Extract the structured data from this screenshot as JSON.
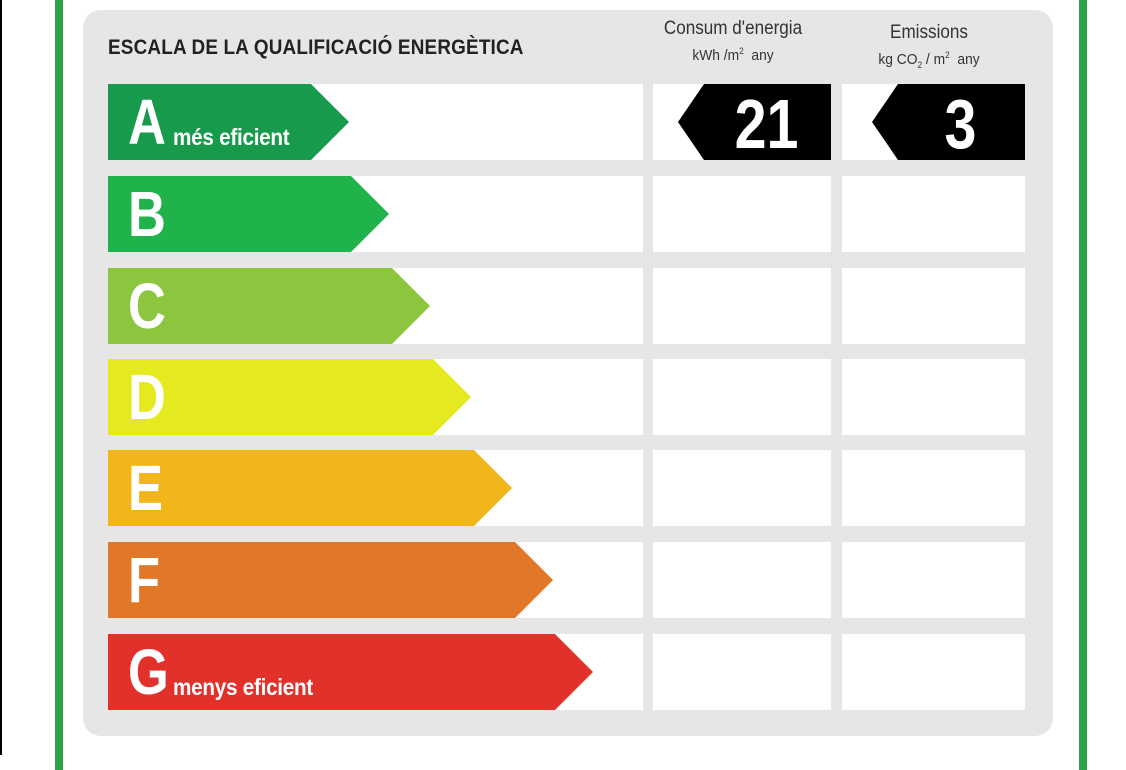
{
  "title": "ESCALA DE LA QUALIFICACIÓ ENERGÈTICA",
  "columns": {
    "energy": {
      "title": "Consum d'energia",
      "unit_prefix": "kWh /m",
      "unit_sup": "2",
      "unit_suffix": "any"
    },
    "emissions": {
      "title": "Emissions",
      "unit_prefix": "kg CO",
      "unit_sub": "2",
      "unit_mid": "/ m",
      "unit_sup": "2",
      "unit_suffix": "any"
    }
  },
  "rating": {
    "class": "A",
    "energy_value": "21",
    "emissions_value": "3",
    "indicator_color": "#000000"
  },
  "classes": [
    {
      "letter": "A",
      "caption": "més eficient",
      "color": "#179a4c"
    },
    {
      "letter": "B",
      "caption": "",
      "color": "#20b24b"
    },
    {
      "letter": "C",
      "caption": "",
      "color": "#8cc63f"
    },
    {
      "letter": "D",
      "caption": "",
      "color": "#e5e91f"
    },
    {
      "letter": "E",
      "caption": "",
      "color": "#f2b51a"
    },
    {
      "letter": "F",
      "caption": "",
      "color": "#e07828"
    },
    {
      "letter": "G",
      "caption": "menys eficient",
      "color": "#e2302b"
    }
  ],
  "frame_color": "#2aa34a"
}
